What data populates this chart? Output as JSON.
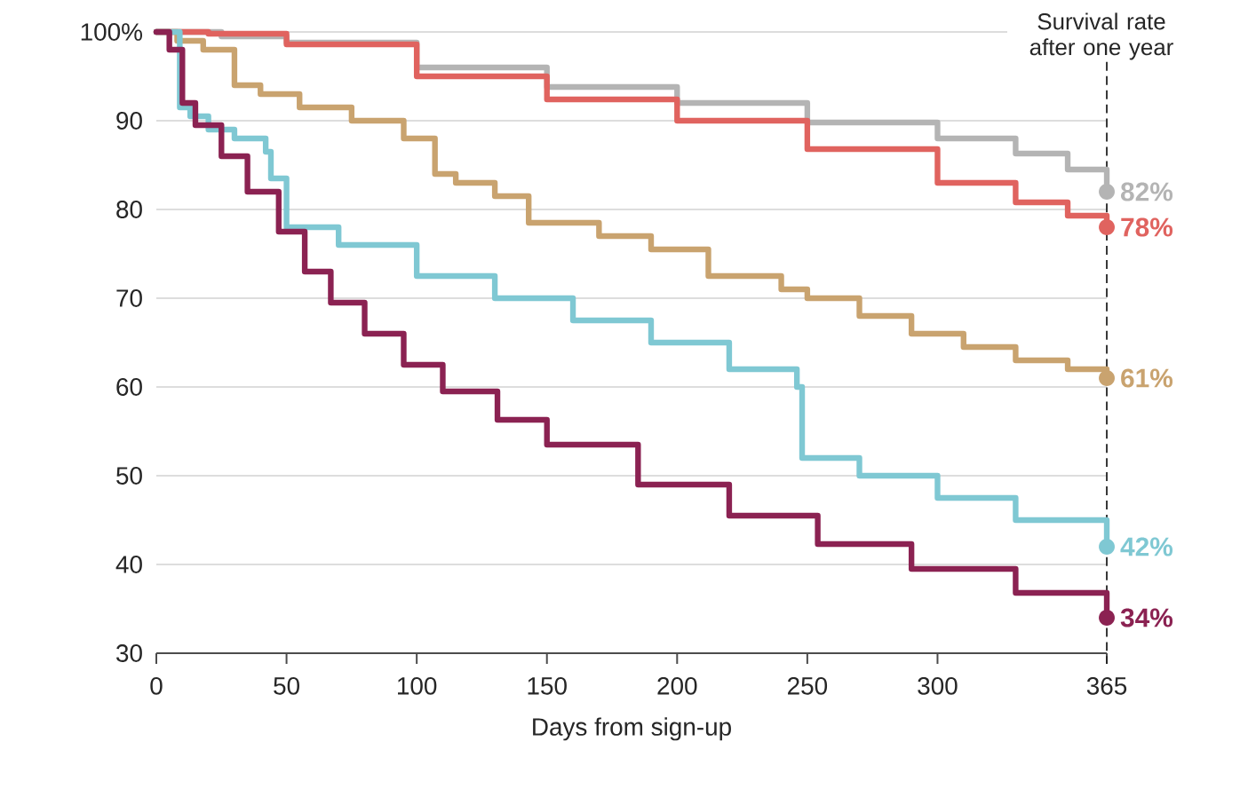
{
  "chart_data": {
    "type": "step",
    "xlabel": "Days from sign-up",
    "xlim": [
      0,
      365
    ],
    "xticks": [
      0,
      50,
      100,
      150,
      200,
      250,
      300,
      365
    ],
    "ylim": [
      30,
      100
    ],
    "yticks": [
      30,
      40,
      50,
      60,
      70,
      80,
      {
        "value": 100,
        "label": "100%"
      },
      90
    ],
    "grid": "y",
    "line_style": "solid",
    "marker": "none",
    "ref_lines": [
      {
        "axis": "x",
        "value": 365,
        "label": "Survival rate after one year",
        "line_style": "dashed",
        "color": "#222222"
      }
    ],
    "series": [
      {
        "color": "#b4b4b4",
        "x": [
          0,
          25,
          50,
          100,
          150,
          200,
          250,
          300,
          330,
          350,
          365
        ],
        "values": [
          100,
          99.5,
          98.8,
          96,
          93.8,
          92,
          89.8,
          88,
          86.3,
          84.5,
          82
        ],
        "value_labels": [
          null,
          null,
          null,
          null,
          null,
          null,
          null,
          null,
          null,
          null,
          "82%"
        ]
      },
      {
        "color": "#e0635f",
        "x": [
          0,
          20,
          50,
          100,
          150,
          200,
          250,
          300,
          330,
          350,
          365
        ],
        "values": [
          100,
          99.8,
          98.6,
          95,
          92.4,
          90,
          86.8,
          83,
          80.8,
          79.3,
          78
        ],
        "value_labels": [
          null,
          null,
          null,
          null,
          null,
          null,
          null,
          null,
          null,
          null,
          "78%"
        ]
      },
      {
        "color": "#c9a36f",
        "x": [
          0,
          8,
          18,
          30,
          40,
          55,
          75,
          95,
          107,
          115,
          130,
          143,
          170,
          190,
          212,
          240,
          250,
          270,
          290,
          310,
          330,
          350,
          365
        ],
        "values": [
          100,
          99,
          98,
          94,
          93,
          91.5,
          90,
          88,
          84,
          83,
          81.5,
          78.5,
          77,
          75.5,
          72.5,
          71,
          70,
          68,
          66,
          64.5,
          63,
          62,
          61
        ],
        "value_labels": [
          null,
          null,
          null,
          null,
          null,
          null,
          null,
          null,
          null,
          null,
          null,
          null,
          null,
          null,
          null,
          null,
          null,
          null,
          null,
          null,
          null,
          null,
          "61%"
        ]
      },
      {
        "color": "#7fc8d3",
        "x": [
          0,
          9,
          13,
          20,
          30,
          42,
          44,
          50,
          70,
          100,
          130,
          160,
          190,
          220,
          246,
          248,
          270,
          300,
          330,
          365
        ],
        "values": [
          100,
          91.5,
          90.5,
          89,
          88,
          86.5,
          83.5,
          78,
          76,
          72.5,
          70,
          67.5,
          65,
          62,
          60,
          52,
          50,
          47.5,
          45,
          42
        ],
        "value_labels": [
          null,
          null,
          null,
          null,
          null,
          null,
          null,
          null,
          null,
          null,
          null,
          null,
          null,
          null,
          null,
          null,
          null,
          null,
          null,
          "42%"
        ]
      },
      {
        "color": "#8b2252",
        "x": [
          0,
          5,
          10,
          15,
          25,
          35,
          47,
          57,
          67,
          80,
          95,
          110,
          131,
          150,
          185,
          220,
          254,
          290,
          330,
          365
        ],
        "values": [
          100,
          98,
          92,
          89.5,
          86,
          82,
          77.5,
          73,
          69.5,
          66,
          62.5,
          59.5,
          56.3,
          53.5,
          49,
          45.5,
          42.3,
          39.5,
          36.8,
          34
        ],
        "value_labels": [
          null,
          null,
          null,
          null,
          null,
          null,
          null,
          null,
          null,
          null,
          null,
          null,
          null,
          null,
          null,
          null,
          null,
          null,
          null,
          "34%"
        ]
      }
    ]
  }
}
